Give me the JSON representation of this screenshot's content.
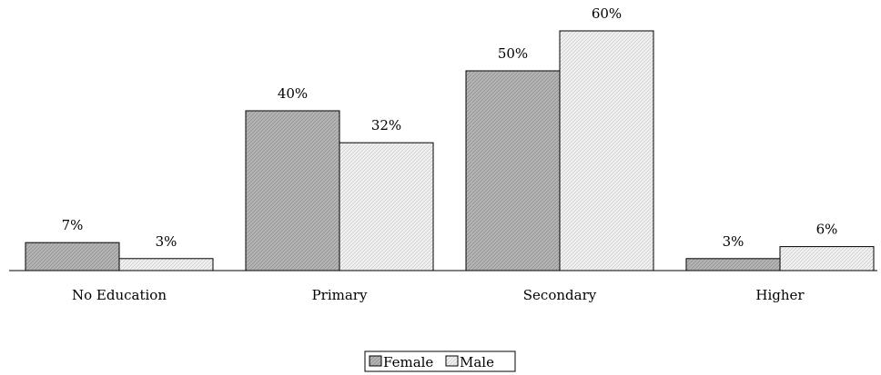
{
  "chart_data": {
    "type": "bar",
    "categories": [
      "No Education",
      "Primary",
      "Secondary",
      "Higher"
    ],
    "series": [
      {
        "name": "Female",
        "values": [
          7,
          40,
          50,
          3
        ],
        "labels": [
          "7%",
          "40%",
          "50%",
          "3%"
        ],
        "color": "#b8b8b8"
      },
      {
        "name": "Male",
        "values": [
          3,
          32,
          60,
          6
        ],
        "labels": [
          "3%",
          "32%",
          "60%",
          "6%"
        ],
        "color": "#ececec"
      }
    ],
    "unit": "%",
    "ylim": [
      0,
      60
    ],
    "grid": false,
    "legend_position": "bottom"
  }
}
